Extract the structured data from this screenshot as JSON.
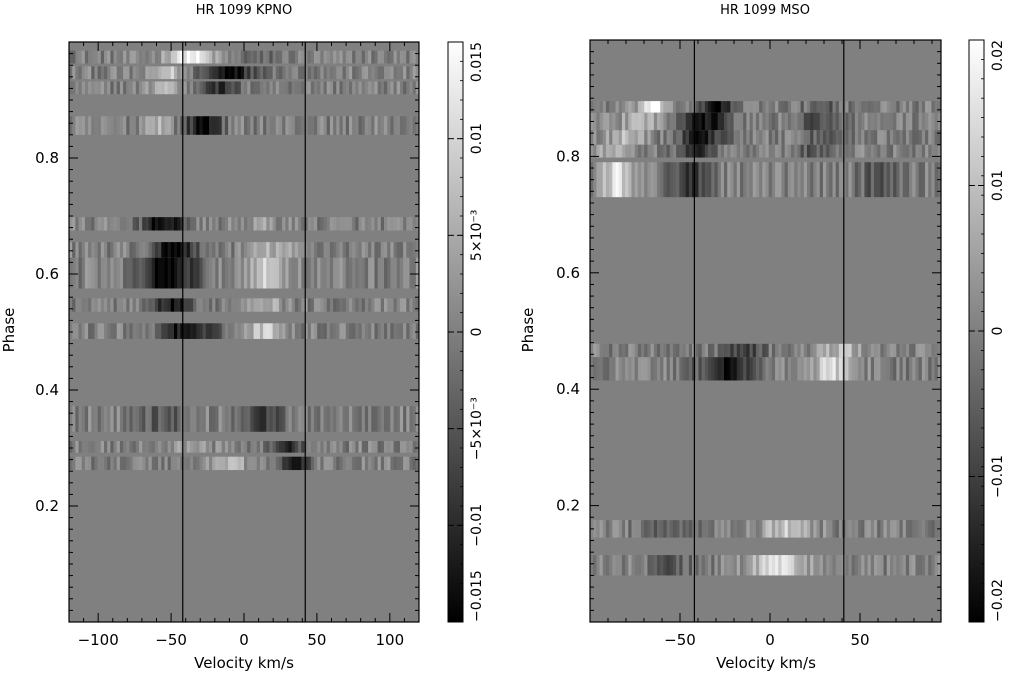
{
  "chart_data": [
    {
      "type": "heatmap",
      "title": "HR 1099 KPNO",
      "xlabel": "Velocity  km/s",
      "ylabel": "Phase",
      "xlim": [
        -120,
        120
      ],
      "ylim": [
        0,
        1.0
      ],
      "x_ticks": [
        -100,
        -50,
        0,
        50,
        100
      ],
      "y_ticks": [
        0.2,
        0.4,
        0.6,
        0.8
      ],
      "vertical_lines": [
        -42,
        42
      ],
      "colorbar": {
        "range": [
          -0.015,
          0.015
        ],
        "ticks": [
          {
            "value": -0.015,
            "label": "−0.015"
          },
          {
            "value": -0.01,
            "label": "−0.01"
          },
          {
            "value": -0.005,
            "label": "−5×10⁻³"
          },
          {
            "value": 0,
            "label": "0"
          },
          {
            "value": 0.005,
            "label": "5×10⁻³"
          },
          {
            "value": 0.01,
            "label": "0.01"
          },
          {
            "value": 0.015,
            "label": "0.015"
          }
        ]
      },
      "bands": [
        {
          "phase": [
            0.963,
            0.985
          ],
          "features": [
            [
              -38,
              0.95,
              16
            ],
            [
              10,
              -0.25,
              14
            ]
          ]
        },
        {
          "phase": [
            0.936,
            0.958
          ],
          "features": [
            [
              -10,
              -0.85,
              18
            ],
            [
              -52,
              0.55,
              10
            ]
          ]
        },
        {
          "phase": [
            0.91,
            0.932
          ],
          "features": [
            [
              -15,
              -0.7,
              12
            ],
            [
              -55,
              0.5,
              10
            ]
          ]
        },
        {
          "phase": [
            0.84,
            0.872
          ],
          "features": [
            [
              -28,
              -0.95,
              12
            ],
            [
              -60,
              0.45,
              10
            ]
          ]
        },
        {
          "phase": [
            0.675,
            0.698
          ],
          "features": [
            [
              -55,
              -1.0,
              14
            ],
            [
              12,
              0.2,
              14
            ]
          ]
        },
        {
          "phase": [
            0.628,
            0.655
          ],
          "features": [
            [
              -48,
              -0.95,
              16
            ],
            [
              20,
              0.35,
              15
            ]
          ]
        },
        {
          "phase": [
            0.575,
            0.628
          ],
          "features": [
            [
              -52,
              -1.0,
              20
            ],
            [
              15,
              0.55,
              16
            ]
          ]
        },
        {
          "phase": [
            0.535,
            0.558
          ],
          "features": [
            [
              -50,
              -0.9,
              15
            ],
            [
              12,
              0.45,
              14
            ]
          ]
        },
        {
          "phase": [
            0.488,
            0.515
          ],
          "features": [
            [
              -38,
              -0.95,
              18
            ],
            [
              15,
              0.6,
              14
            ]
          ]
        },
        {
          "phase": [
            0.328,
            0.372
          ],
          "features": [
            [
              -55,
              -0.3,
              16
            ],
            [
              15,
              -0.55,
              14
            ]
          ]
        },
        {
          "phase": [
            0.292,
            0.312
          ],
          "features": [
            [
              30,
              -0.8,
              10
            ],
            [
              -35,
              0.3,
              12
            ]
          ]
        },
        {
          "phase": [
            0.262,
            0.285
          ],
          "features": [
            [
              35,
              -0.9,
              10
            ],
            [
              -10,
              0.5,
              12
            ]
          ]
        }
      ]
    },
    {
      "type": "heatmap",
      "title": "HR 1099 MSO",
      "xlabel": "Velocity  km/s",
      "ylabel": "Phase",
      "xlim": [
        -100,
        95
      ],
      "ylim": [
        0,
        1.0
      ],
      "x_ticks": [
        -50,
        0,
        50
      ],
      "y_ticks": [
        0.2,
        0.4,
        0.6,
        0.8
      ],
      "vertical_lines": [
        -42,
        41
      ],
      "colorbar": {
        "range": [
          -0.02,
          0.02
        ],
        "ticks": [
          {
            "value": -0.02,
            "label": "−0.02"
          },
          {
            "value": -0.01,
            "label": "−0.01"
          },
          {
            "value": 0,
            "label": "0"
          },
          {
            "value": 0.01,
            "label": "0.01"
          },
          {
            "value": 0.02,
            "label": "0.02"
          }
        ]
      },
      "bands": [
        {
          "phase": [
            0.875,
            0.895
          ],
          "features": [
            [
              -65,
              0.9,
              8
            ],
            [
              -30,
              -0.9,
              10
            ],
            [
              30,
              -0.3,
              12
            ]
          ]
        },
        {
          "phase": [
            0.845,
            0.875
          ],
          "features": [
            [
              -72,
              0.5,
              10
            ],
            [
              -35,
              -0.9,
              12
            ],
            [
              28,
              -0.4,
              14
            ]
          ]
        },
        {
          "phase": [
            0.82,
            0.845
          ],
          "features": [
            [
              -80,
              0.5,
              10
            ],
            [
              -38,
              -0.85,
              12
            ],
            [
              30,
              -0.3,
              14
            ]
          ]
        },
        {
          "phase": [
            0.798,
            0.82
          ],
          "features": [
            [
              -85,
              0.5,
              10
            ],
            [
              -42,
              -0.7,
              10
            ],
            [
              25,
              -0.3,
              12
            ]
          ]
        },
        {
          "phase": [
            0.73,
            0.79
          ],
          "features": [
            [
              -85,
              0.75,
              10
            ],
            [
              -45,
              -0.65,
              10
            ],
            [
              60,
              -0.3,
              12
            ]
          ]
        },
        {
          "phase": [
            0.455,
            0.478
          ],
          "features": [
            [
              -15,
              -0.55,
              12
            ],
            [
              40,
              0.45,
              12
            ]
          ]
        },
        {
          "phase": [
            0.415,
            0.455
          ],
          "features": [
            [
              -25,
              -0.85,
              15
            ],
            [
              35,
              0.65,
              12
            ]
          ]
        },
        {
          "phase": [
            0.145,
            0.175
          ],
          "features": [
            [
              -55,
              -0.35,
              14
            ],
            [
              10,
              0.55,
              14
            ]
          ]
        },
        {
          "phase": [
            0.08,
            0.115
          ],
          "features": [
            [
              -55,
              -0.3,
              12
            ],
            [
              5,
              0.75,
              16
            ]
          ]
        }
      ]
    }
  ]
}
